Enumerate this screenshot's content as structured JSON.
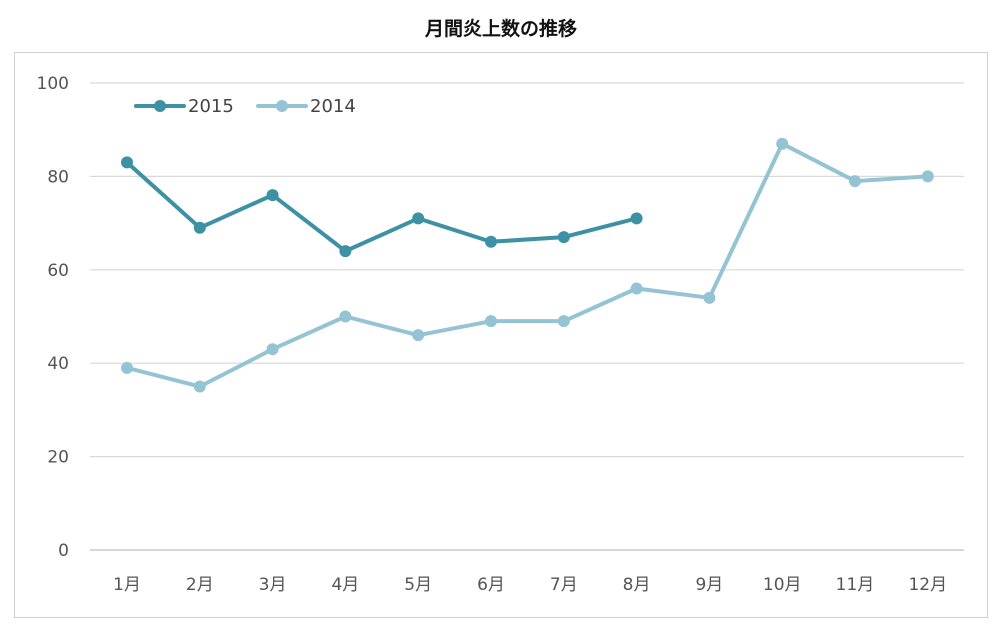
{
  "chart_data": {
    "type": "line",
    "title": "月間炎上数の推移",
    "xlabel": "",
    "ylabel": "",
    "categories": [
      "1月",
      "2月",
      "3月",
      "4月",
      "5月",
      "6月",
      "7月",
      "8月",
      "9月",
      "10月",
      "11月",
      "12月"
    ],
    "ylim": [
      0,
      100
    ],
    "yticks": [
      "0",
      "20",
      "40",
      "60",
      "80",
      "100"
    ],
    "grid": true,
    "legend_position": "top-left",
    "series": [
      {
        "name": "2015",
        "color": "#3c91a4",
        "values": [
          83,
          69,
          76,
          64,
          71,
          66,
          67,
          71,
          null,
          null,
          null,
          null
        ]
      },
      {
        "name": "2014",
        "color": "#94c4d4",
        "values": [
          39,
          35,
          43,
          50,
          46,
          49,
          49,
          56,
          54,
          87,
          79,
          80
        ]
      }
    ]
  }
}
